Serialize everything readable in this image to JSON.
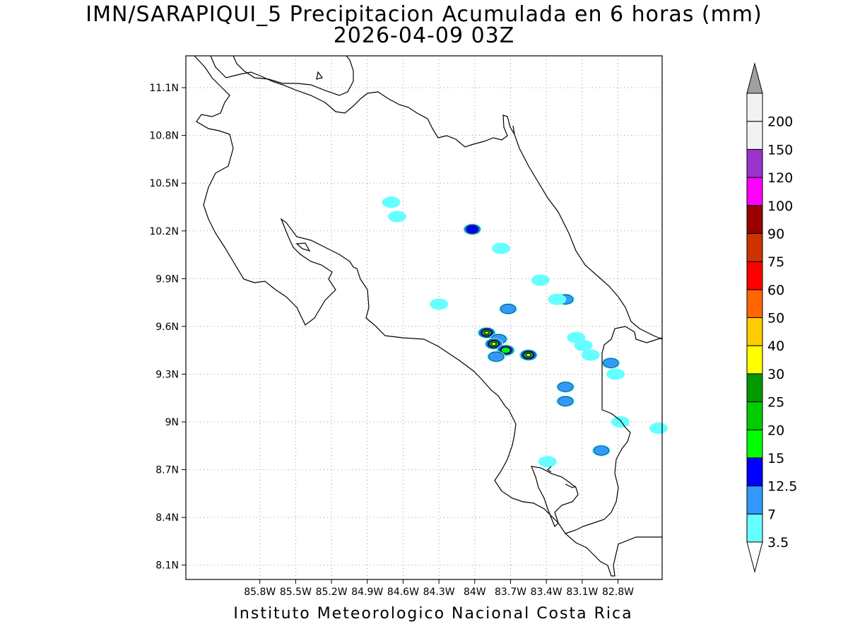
{
  "title": {
    "line1": "IMN/SARAPIQUI_5 Precipitacion Acumulada en 6 horas (mm)",
    "line2": "2026-04-09 03Z"
  },
  "footer": "Instituto Meteorologico Nacional Costa Rica",
  "map": {
    "lon_range": [
      -86.42,
      -82.43
    ],
    "lat_range": [
      8.01,
      11.3
    ],
    "lon_ticks": [
      {
        "value": -85.8,
        "label": "85.8W"
      },
      {
        "value": -85.5,
        "label": "85.5W"
      },
      {
        "value": -85.2,
        "label": "85.2W"
      },
      {
        "value": -84.9,
        "label": "84.9W"
      },
      {
        "value": -84.6,
        "label": "84.6W"
      },
      {
        "value": -84.3,
        "label": "84.3W"
      },
      {
        "value": -84.0,
        "label": "84W"
      },
      {
        "value": -83.7,
        "label": "83.7W"
      },
      {
        "value": -83.4,
        "label": "83.4W"
      },
      {
        "value": -83.1,
        "label": "83.1W"
      },
      {
        "value": -82.8,
        "label": "82.8W"
      }
    ],
    "lat_ticks": [
      {
        "value": 11.1,
        "label": "11.1N"
      },
      {
        "value": 10.8,
        "label": "10.8N"
      },
      {
        "value": 10.5,
        "label": "10.5N"
      },
      {
        "value": 10.2,
        "label": "10.2N"
      },
      {
        "value": 9.9,
        "label": "9.9N"
      },
      {
        "value": 9.6,
        "label": "9.6N"
      },
      {
        "value": 9.3,
        "label": "9.3N"
      },
      {
        "value": 9.0,
        "label": "9N"
      },
      {
        "value": 8.7,
        "label": "8.7N"
      },
      {
        "value": 8.4,
        "label": "8.4N"
      },
      {
        "value": 8.1,
        "label": "8.1N"
      }
    ],
    "grid": true,
    "precip_cells": [
      {
        "lon": -84.7,
        "lat": 10.38,
        "max_mm": 3.5
      },
      {
        "lon": -84.65,
        "lat": 10.29,
        "max_mm": 3.5
      },
      {
        "lon": -84.02,
        "lat": 10.21,
        "max_mm": 12.5
      },
      {
        "lon": -83.78,
        "lat": 10.09,
        "max_mm": 3.5
      },
      {
        "lon": -83.72,
        "lat": 9.71,
        "max_mm": 7
      },
      {
        "lon": -83.24,
        "lat": 9.77,
        "max_mm": 7
      },
      {
        "lon": -83.31,
        "lat": 9.77,
        "max_mm": 3.5
      },
      {
        "lon": -83.9,
        "lat": 9.56,
        "max_mm": 40
      },
      {
        "lon": -83.8,
        "lat": 9.52,
        "max_mm": 7
      },
      {
        "lon": -83.84,
        "lat": 9.49,
        "max_mm": 30
      },
      {
        "lon": -83.74,
        "lat": 9.45,
        "max_mm": 15
      },
      {
        "lon": -83.82,
        "lat": 9.41,
        "max_mm": 7
      },
      {
        "lon": -83.55,
        "lat": 9.42,
        "max_mm": 30
      },
      {
        "lon": -83.15,
        "lat": 9.53,
        "max_mm": 3.5
      },
      {
        "lon": -83.09,
        "lat": 9.48,
        "max_mm": 3.5
      },
      {
        "lon": -83.03,
        "lat": 9.42,
        "max_mm": 3.5
      },
      {
        "lon": -82.86,
        "lat": 9.37,
        "max_mm": 7
      },
      {
        "lon": -83.24,
        "lat": 9.22,
        "max_mm": 7
      },
      {
        "lon": -83.24,
        "lat": 9.13,
        "max_mm": 7
      },
      {
        "lon": -82.94,
        "lat": 8.82,
        "max_mm": 7
      },
      {
        "lon": -83.39,
        "lat": 8.75,
        "max_mm": 3.5
      },
      {
        "lon": -83.45,
        "lat": 9.89,
        "max_mm": 3.5
      },
      {
        "lon": -84.3,
        "lat": 9.74,
        "max_mm": 3.5
      },
      {
        "lon": -82.78,
        "lat": 9.0,
        "max_mm": 3.5
      },
      {
        "lon": -82.46,
        "lat": 8.96,
        "max_mm": 3.5
      },
      {
        "lon": -82.82,
        "lat": 9.3,
        "max_mm": 3.5
      }
    ]
  },
  "colorbar": {
    "levels": [
      {
        "label": "3.5",
        "color": "#66ffff"
      },
      {
        "label": "7",
        "color": "#3399ff"
      },
      {
        "label": "12.5",
        "color": "#0000ff"
      },
      {
        "label": "15",
        "color": "#00ff00"
      },
      {
        "label": "20",
        "color": "#00cc00"
      },
      {
        "label": "25",
        "color": "#009900"
      },
      {
        "label": "30",
        "color": "#ffff00"
      },
      {
        "label": "40",
        "color": "#ffcc00"
      },
      {
        "label": "50",
        "color": "#ff6600"
      },
      {
        "label": "60",
        "color": "#ff0000"
      },
      {
        "label": "75",
        "color": "#cc3300"
      },
      {
        "label": "90",
        "color": "#990000"
      },
      {
        "label": "100",
        "color": "#ff00ff"
      },
      {
        "label": "120",
        "color": "#9933cc"
      },
      {
        "label": "150",
        "color": "#f2f2f2"
      },
      {
        "label": "200",
        "color": "#a0a0a0"
      }
    ],
    "under_color": "#ffffff",
    "over_color": "#a0a0a0"
  }
}
